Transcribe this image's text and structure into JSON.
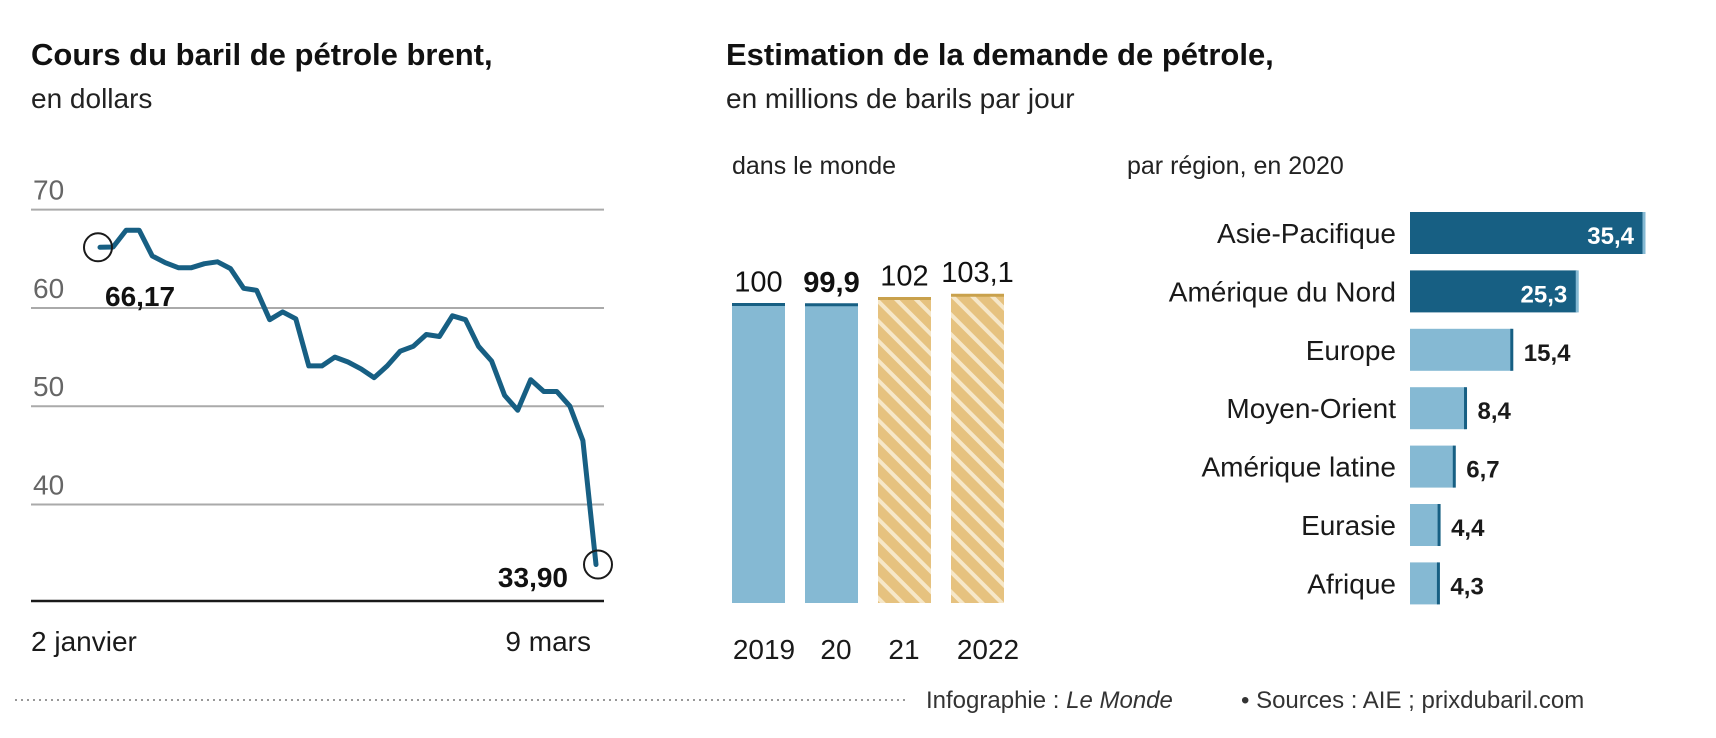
{
  "colors": {
    "dark_blue": "#175f83",
    "light_blue": "#85b9d3",
    "gold": "#e6c27f",
    "gold_line": "#c9a14c",
    "gridline": "#aaaaaa"
  },
  "chart_data": [
    {
      "type": "line",
      "title": "Cours du baril de pétrole brent,",
      "subtitle": "en dollars",
      "x_labels": [
        "2 janvier",
        "9 mars"
      ],
      "yticks": [
        70,
        60,
        50,
        40
      ],
      "ylim": [
        31,
        72
      ],
      "grid": true,
      "values": [
        66.17,
        66.2,
        67.9,
        67.9,
        65.3,
        64.6,
        64.1,
        64.1,
        64.5,
        64.7,
        64.0,
        62.0,
        61.8,
        58.8,
        59.6,
        58.9,
        54.1,
        54.1,
        55.0,
        54.5,
        53.8,
        52.9,
        54.1,
        55.6,
        56.1,
        57.3,
        57.1,
        59.2,
        58.8,
        56.1,
        54.6,
        51.1,
        49.6,
        52.7,
        51.5,
        51.5,
        50.0,
        46.5,
        33.9
      ],
      "annotations": [
        {
          "label": "66,17",
          "value": 66.17
        },
        {
          "label": "33,90",
          "value": 33.9
        }
      ]
    },
    {
      "type": "bar",
      "title": "Estimation de la demande de pétrole,",
      "subtitle": "en millions de barils par jour",
      "section_label": "dans le monde",
      "categories": [
        "2019",
        "20",
        "21",
        "2022"
      ],
      "values": [
        100,
        99.9,
        102,
        103.1
      ],
      "value_labels": [
        "100",
        "99,9",
        "102",
        "103,1"
      ],
      "bold_labels": [
        false,
        true,
        false,
        false
      ],
      "estimated": [
        false,
        false,
        true,
        true
      ]
    },
    {
      "type": "bar",
      "orientation": "horizontal",
      "section_label": "par région, en 2020",
      "categories": [
        "Asie-Pacifique",
        "Amérique du Nord",
        "Europe",
        "Moyen-Orient",
        "Amérique latine",
        "Eurasie",
        "Afrique"
      ],
      "values": [
        35.4,
        25.3,
        15.4,
        8.4,
        6.7,
        4.4,
        4.3
      ],
      "value_labels": [
        "35,4",
        "25,3",
        "15,4",
        "8,4",
        "6,7",
        "4,4",
        "4,3"
      ],
      "xlim": [
        0,
        35.4
      ]
    }
  ],
  "footer": {
    "credit_prefix": "Infographie : ",
    "credit_source": "Le Monde",
    "sources": "• Sources : AIE ; prixdubaril.com"
  }
}
